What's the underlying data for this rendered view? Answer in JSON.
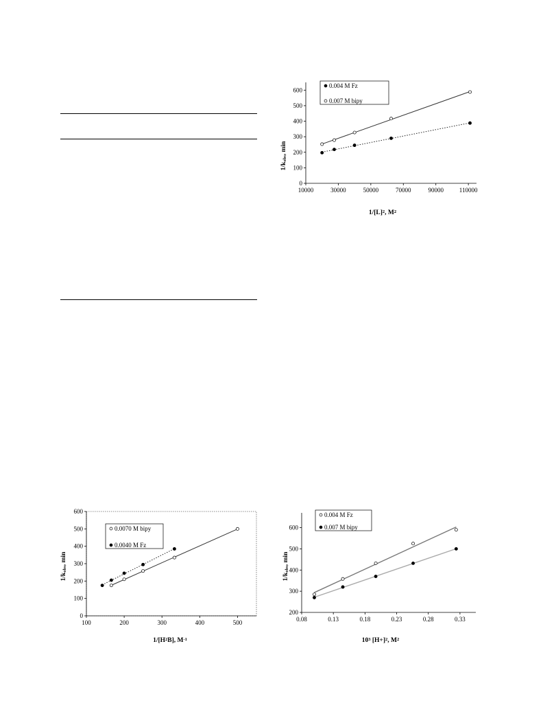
{
  "chart_data": [
    {
      "type": "scatter",
      "xlabel_parts": [
        "1/[L]",
        "2",
        ", M",
        "2"
      ],
      "ylabel_parts": [
        "1/k",
        "obs",
        ", min"
      ],
      "xlim": [
        10000,
        115000
      ],
      "ylim": [
        0,
        650
      ],
      "xticks": [
        10000,
        30000,
        50000,
        70000,
        90000,
        110000
      ],
      "yticks": [
        0,
        100,
        200,
        300,
        400,
        500,
        600
      ],
      "legend": "top-left",
      "series": [
        {
          "name": "0.004 M Fz",
          "marker": "filled",
          "line": "dotted",
          "x": [
            20000,
            27500,
            40000,
            62500,
            111000
          ],
          "y": [
            197,
            218,
            245,
            290,
            388
          ]
        },
        {
          "name": "0.007 M bipy",
          "marker": "open",
          "line": "solid",
          "x": [
            20000,
            27500,
            40000,
            62500,
            111000
          ],
          "y": [
            252,
            278,
            327,
            417,
            588
          ]
        }
      ]
    },
    {
      "type": "scatter",
      "xlabel_parts": [
        "1/[H",
        "2",
        "B], M",
        "-1"
      ],
      "ylabel_parts": [
        "1/k",
        "obs",
        ", min"
      ],
      "xlim": [
        100,
        550
      ],
      "ylim": [
        0,
        600
      ],
      "xticks": [
        100,
        200,
        300,
        400,
        500
      ],
      "yticks": [
        0,
        100,
        200,
        300,
        400,
        500,
        600
      ],
      "legend": "top-left",
      "series": [
        {
          "name": "0.0070 M bipy",
          "marker": "open",
          "line": "solid",
          "x": [
            166,
            200,
            250,
            333,
            500
          ],
          "y": [
            175,
            210,
            258,
            335,
            500
          ]
        },
        {
          "name": "0.0040 M Fz",
          "marker": "filled",
          "line": "dotted",
          "x": [
            142,
            166,
            200,
            250,
            333
          ],
          "y": [
            175,
            205,
            245,
            295,
            385
          ]
        }
      ]
    },
    {
      "type": "scatter",
      "xlabel_parts": [
        "10",
        "3",
        " [H+]",
        "2",
        ", M",
        "2"
      ],
      "ylabel_parts": [
        "1/k",
        "obs",
        ", min"
      ],
      "xlim": [
        0.08,
        0.355
      ],
      "ylim": [
        200,
        670
      ],
      "xticks": [
        0.08,
        0.13,
        0.18,
        0.23,
        0.28,
        0.33
      ],
      "yticks": [
        200,
        300,
        400,
        500,
        600
      ],
      "legend": "top-left",
      "series": [
        {
          "name": "0.004 M Fz",
          "marker": "open",
          "line": "solid-gray",
          "x": [
            0.1,
            0.145,
            0.197,
            0.256,
            0.324
          ],
          "y": [
            285,
            358,
            432,
            525,
            590
          ]
        },
        {
          "name": "0.007 M bipy",
          "marker": "filled",
          "line": "solid-lightgray",
          "x": [
            0.1,
            0.145,
            0.197,
            0.256,
            0.324
          ],
          "y": [
            270,
            320,
            370,
            432,
            500
          ]
        }
      ]
    }
  ]
}
